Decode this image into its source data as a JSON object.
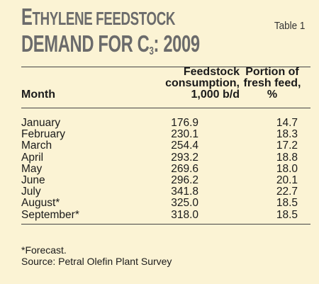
{
  "title": {
    "line1_first": "E",
    "line1_rest": "THYLENE FEEDSTOCK",
    "line2_pre": "DEMAND FOR C",
    "line2_sub": "3",
    "line2_post": ": 2009"
  },
  "table_label": "Table 1",
  "columns": {
    "month": "Month",
    "consumption": [
      "Feedstock",
      "consumption,",
      "1,000 b/d"
    ],
    "portion": [
      "Portion of",
      "fresh feed,",
      "%"
    ]
  },
  "rows": [
    {
      "month": "January",
      "consumption": "176.9",
      "portion": "14.7"
    },
    {
      "month": "February",
      "consumption": "230.1",
      "portion": "18.3"
    },
    {
      "month": "March",
      "consumption": "254.4",
      "portion": "17.2"
    },
    {
      "month": "April",
      "consumption": "293.2",
      "portion": "18.8"
    },
    {
      "month": "May",
      "consumption": "269.6",
      "portion": "18.0"
    },
    {
      "month": "June",
      "consumption": "296.2",
      "portion": "20.1"
    },
    {
      "month": "July",
      "consumption": "341.8",
      "portion": "22.7"
    },
    {
      "month": "August*",
      "consumption": "325.0",
      "portion": "18.5"
    },
    {
      "month": "September*",
      "consumption": "318.0",
      "portion": "18.5"
    }
  ],
  "footnotes": [
    "*Forecast.",
    "Source: Petral Olefin Plant Survey"
  ]
}
